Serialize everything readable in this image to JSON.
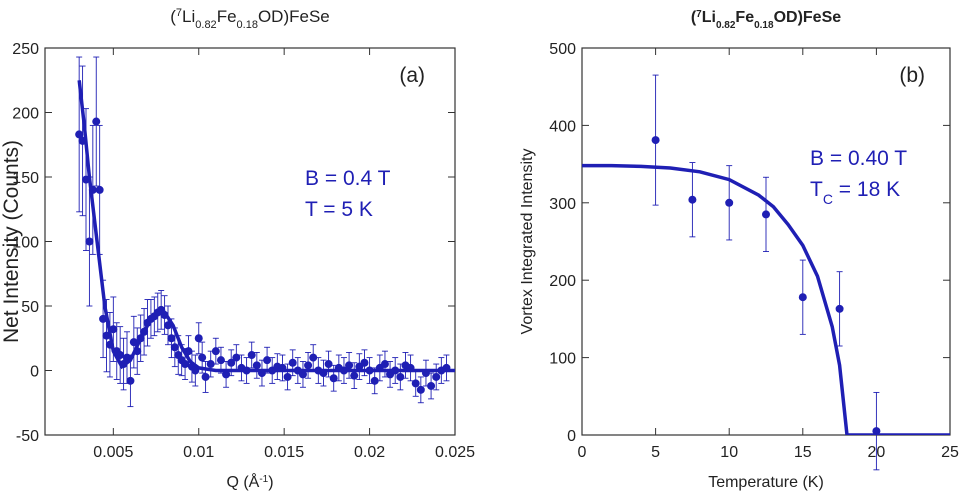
{
  "chart_data": [
    {
      "type": "scatter",
      "title": [
        "(",
        "7",
        "Li",
        "0.82",
        "Fe",
        "0.18",
        "OD)FeSe"
      ],
      "x_label": [
        "Q (Å",
        "-1",
        ")"
      ],
      "y_label": [
        "Net Intensity (Counts)"
      ],
      "annotations": [
        [
          "(a)"
        ],
        [
          "B = 0.4 T"
        ],
        [
          "T = 5 K"
        ]
      ],
      "xlim": [
        0.001,
        0.025
      ],
      "ylim": [
        -50,
        250
      ],
      "xticks": [
        0.005,
        0.01,
        0.015,
        0.02,
        0.025
      ],
      "yticks": [
        -50,
        0,
        50,
        100,
        150,
        200,
        250
      ],
      "series": [
        {
          "mode": "points",
          "color": "#1f1fb4",
          "x": [
            0.003,
            0.0032,
            0.0034,
            0.0036,
            0.0038,
            0.004,
            0.0042,
            0.0044,
            0.0046,
            0.0048,
            0.005,
            0.0052,
            0.0054,
            0.0056,
            0.0058,
            0.006,
            0.0062,
            0.0064,
            0.0066,
            0.0068,
            0.007,
            0.0072,
            0.0074,
            0.0076,
            0.0078,
            0.008,
            0.0082,
            0.0084,
            0.0086,
            0.0088,
            0.009,
            0.0092,
            0.0094,
            0.0096,
            0.0098,
            0.01,
            0.0102,
            0.0104,
            0.0107,
            0.011,
            0.0113,
            0.0116,
            0.0119,
            0.0122,
            0.0125,
            0.0128,
            0.0131,
            0.0134,
            0.0137,
            0.014,
            0.0143,
            0.0146,
            0.0149,
            0.0152,
            0.0155,
            0.0158,
            0.0161,
            0.0164,
            0.0167,
            0.017,
            0.0173,
            0.0176,
            0.0179,
            0.0182,
            0.0185,
            0.0188,
            0.0191,
            0.0194,
            0.0197,
            0.02,
            0.0203,
            0.0206,
            0.0209,
            0.0212,
            0.0215,
            0.0218,
            0.0221,
            0.0224,
            0.0227,
            0.023,
            0.0233,
            0.0236,
            0.0239,
            0.0242,
            0.0245
          ],
          "values": [
            183,
            178,
            148,
            100,
            140,
            193,
            140,
            40,
            27,
            20,
            32,
            15,
            12,
            5,
            10,
            -8,
            22,
            15,
            25,
            30,
            37,
            40,
            42,
            45,
            47,
            43,
            35,
            25,
            18,
            12,
            8,
            5,
            15,
            3,
            0,
            25,
            10,
            -5,
            5,
            15,
            8,
            -3,
            6,
            10,
            2,
            0,
            12,
            4,
            -2,
            8,
            0,
            3,
            2,
            -5,
            6,
            0,
            -3,
            4,
            10,
            0,
            -2,
            5,
            -6,
            2,
            0,
            4,
            -4,
            3,
            6,
            0,
            -8,
            2,
            5,
            -3,
            0,
            -5,
            4,
            2,
            -10,
            -15,
            -2,
            -12,
            -5,
            0,
            2
          ],
          "errors": [
            60,
            58,
            55,
            50,
            50,
            50,
            50,
            30,
            28,
            25,
            25,
            22,
            22,
            20,
            20,
            20,
            20,
            18,
            18,
            18,
            18,
            15,
            15,
            15,
            15,
            15,
            15,
            15,
            15,
            15,
            12,
            12,
            12,
            12,
            12,
            12,
            12,
            12,
            10,
            10,
            10,
            10,
            10,
            10,
            10,
            10,
            10,
            10,
            10,
            10,
            10,
            10,
            10,
            10,
            10,
            10,
            10,
            10,
            10,
            10,
            10,
            10,
            10,
            10,
            10,
            10,
            10,
            10,
            10,
            10,
            10,
            10,
            10,
            10,
            10,
            10,
            10,
            10,
            10,
            10,
            10,
            10,
            10,
            10,
            10
          ]
        },
        {
          "mode": "line",
          "color": "#1f1fb4",
          "x": [
            0.003,
            0.0033,
            0.0036,
            0.004,
            0.0045,
            0.005,
            0.0055,
            0.006,
            0.0065,
            0.007,
            0.0075,
            0.008,
            0.0085,
            0.009,
            0.0095,
            0.01,
            0.011,
            0.012,
            0.025
          ],
          "values": [
            225,
            190,
            150,
            105,
            50,
            15,
            3,
            8,
            22,
            35,
            44,
            45,
            35,
            18,
            7,
            2,
            0,
            0,
            0
          ]
        }
      ]
    },
    {
      "type": "scatter",
      "title": [
        "(",
        "7",
        "Li",
        "0.82",
        "Fe",
        "0.18",
        "OD)FeSe"
      ],
      "x_label": [
        "Temperature (K)"
      ],
      "y_label": [
        "Vortex Integrated Intensity"
      ],
      "annotations": [
        [
          "(b)"
        ],
        [
          "B = 0.40 T"
        ],
        [
          "T",
          "C",
          " = 18 K"
        ]
      ],
      "xlim": [
        0,
        25
      ],
      "ylim": [
        0,
        500
      ],
      "xticks": [
        0,
        5,
        10,
        15,
        20,
        25
      ],
      "yticks": [
        0,
        100,
        200,
        300,
        400,
        500
      ],
      "series": [
        {
          "mode": "points",
          "color": "#1f1fb4",
          "x": [
            5,
            7.5,
            10,
            12.5,
            15,
            17.5,
            20
          ],
          "values": [
            381,
            304,
            300,
            285,
            178,
            163,
            5
          ],
          "errors": [
            84,
            48,
            48,
            48,
            48,
            48,
            50
          ]
        },
        {
          "mode": "line",
          "color": "#1f1fb4",
          "x": [
            0,
            2,
            4,
            6,
            8,
            10,
            12,
            13,
            14,
            15,
            16,
            17,
            17.5,
            18,
            25
          ],
          "values": [
            348,
            348,
            347,
            345,
            340,
            330,
            310,
            295,
            272,
            245,
            205,
            140,
            90,
            0,
            0
          ]
        }
      ]
    }
  ]
}
